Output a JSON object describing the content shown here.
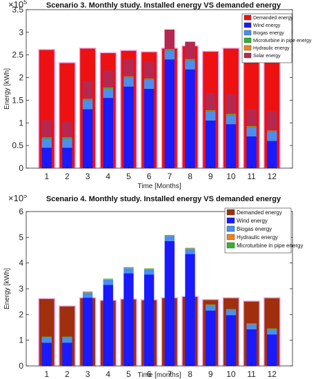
{
  "chart_data": [
    {
      "type": "bar",
      "title": "Scenario 3. Monthly study. Installed energy VS demanded energy",
      "xlabel": "Time [Months]",
      "ylabel": "Energy [kWh]",
      "y_exponent_label": "×10",
      "y_exponent": "5",
      "categories": [
        "1",
        "2",
        "3",
        "4",
        "5",
        "6",
        "7",
        "8",
        "9",
        "10",
        "11",
        "12"
      ],
      "ylim": [
        0,
        3.5
      ],
      "yticks": [
        0,
        0.5,
        1,
        1.5,
        2,
        2.5,
        3,
        3.5
      ],
      "ytick_labels": [
        "0",
        "0.5",
        "1",
        "1.5",
        "2",
        "2.5",
        "3",
        "3.5"
      ],
      "y_unit_multiplier": 100000,
      "legend_placement": "top-right",
      "stacked_series": [
        {
          "name": "Wind energy",
          "color": "#1a1aff",
          "values": [
            0.45,
            0.45,
            1.3,
            1.55,
            1.8,
            1.75,
            2.4,
            2.18,
            1.05,
            0.97,
            0.7,
            0.6
          ]
        },
        {
          "name": "Biogas energy",
          "color": "#4a8ff0",
          "values": [
            0.2,
            0.2,
            0.2,
            0.2,
            0.2,
            0.2,
            0.2,
            0.2,
            0.2,
            0.2,
            0.2,
            0.2
          ]
        },
        {
          "name": "Microturbine in pipe energy",
          "color": "#2fb52f",
          "values": [
            0.02,
            0.02,
            0.02,
            0.02,
            0.02,
            0.02,
            0.02,
            0.02,
            0.02,
            0.02,
            0.02,
            0.02
          ]
        },
        {
          "name": "Hydraulic energy",
          "color": "#f08020",
          "values": [
            0.01,
            0.01,
            0.01,
            0.01,
            0.01,
            0.01,
            0.01,
            0.01,
            0.01,
            0.01,
            0.01,
            0.01
          ]
        },
        {
          "name": "Solar energy",
          "color": "#b52850",
          "values": [
            0.38,
            0.35,
            0.4,
            0.38,
            0.38,
            0.38,
            0.43,
            0.38,
            0.38,
            0.43,
            0.38,
            0.43
          ]
        }
      ],
      "demand_series": {
        "name": "Demanded energy",
        "color": "#ee1111",
        "values": [
          2.62,
          2.33,
          2.65,
          2.55,
          2.6,
          2.57,
          2.65,
          2.7,
          2.58,
          2.65,
          2.52,
          2.65
        ]
      }
    },
    {
      "type": "bar",
      "title": "Scenario 4. Monthly study. Installed energy VS demanded energy",
      "xlabel": "Time [months]",
      "ylabel": "Energy [kWh]",
      "y_exponent_label": "×10",
      "y_exponent": "5",
      "categories": [
        "1",
        "2",
        "3",
        "4",
        "5",
        "6",
        "7",
        "8",
        "9",
        "10",
        "11",
        "12"
      ],
      "ylim": [
        0,
        6
      ],
      "yticks": [
        0,
        1,
        2,
        3,
        4,
        5,
        6
      ],
      "ytick_labels": [
        "0",
        "1",
        "2",
        "3",
        "4",
        "5",
        "6"
      ],
      "y_unit_multiplier": 100000,
      "legend_placement": "top-right",
      "demand_series": {
        "name": "Demanded energy",
        "color": "#a0300d",
        "values": [
          2.62,
          2.33,
          2.65,
          2.55,
          2.6,
          2.57,
          2.65,
          2.7,
          2.58,
          2.65,
          2.52,
          2.65
        ]
      },
      "stacked_series": [
        {
          "name": "Wind energy",
          "color": "#1a1aff",
          "values": [
            0.9,
            0.9,
            2.65,
            3.15,
            3.6,
            3.55,
            4.85,
            4.35,
            2.15,
            1.97,
            1.42,
            1.22
          ]
        },
        {
          "name": "Biogas energy",
          "color": "#4a8ff0",
          "values": [
            0.2,
            0.2,
            0.2,
            0.2,
            0.2,
            0.2,
            0.2,
            0.2,
            0.2,
            0.2,
            0.2,
            0.2
          ]
        },
        {
          "name": "Hydraulic energy",
          "color": "#f08020",
          "values": [
            0.02,
            0.02,
            0.02,
            0.02,
            0.02,
            0.02,
            0.02,
            0.02,
            0.02,
            0.02,
            0.02,
            0.02
          ]
        },
        {
          "name": "Microturbine in pipe energy",
          "color": "#2fb52f",
          "values": [
            0.02,
            0.02,
            0.02,
            0.02,
            0.02,
            0.02,
            0.02,
            0.02,
            0.02,
            0.02,
            0.02,
            0.02
          ]
        }
      ]
    }
  ]
}
